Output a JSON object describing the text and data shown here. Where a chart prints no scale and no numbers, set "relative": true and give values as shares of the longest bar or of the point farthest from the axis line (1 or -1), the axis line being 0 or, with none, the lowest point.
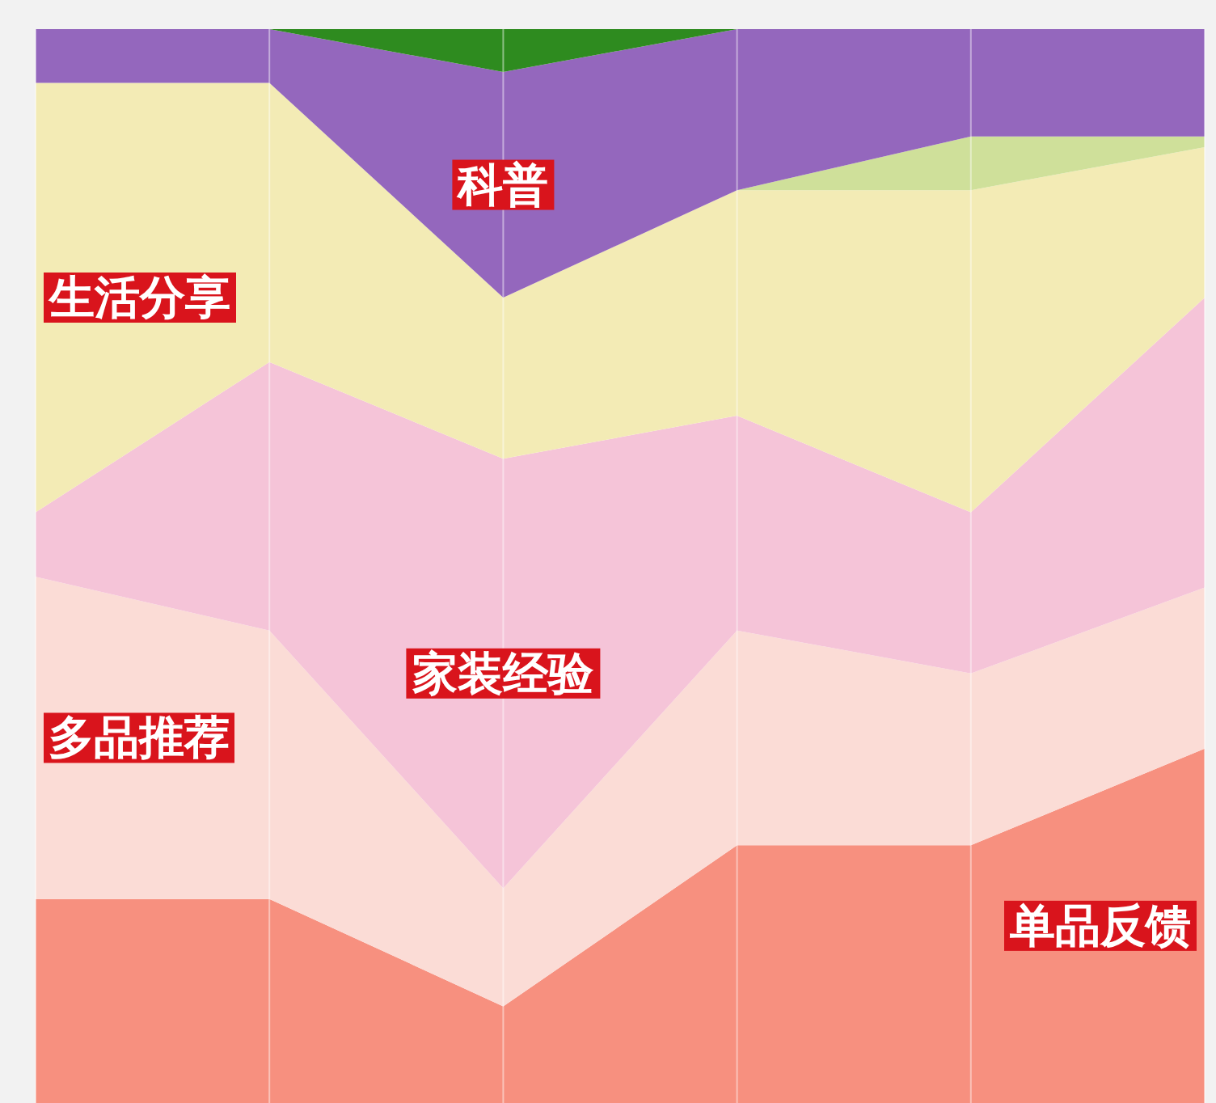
{
  "chart_data": {
    "type": "area",
    "stacked": true,
    "relative": true,
    "grid": "x",
    "categories": [
      null,
      null,
      null,
      null,
      null,
      null
    ],
    "series": [
      {
        "name": "单品反馈",
        "color": "#f7907f",
        "values": [
          0.19,
          0.19,
          0.09,
          0.24,
          0.24,
          0.33
        ]
      },
      {
        "name": "多品推荐",
        "color": "#fbdcd6",
        "values": [
          0.3,
          0.25,
          0.11,
          0.2,
          0.16,
          0.15
        ]
      },
      {
        "name": "家装经验",
        "color": "#f5c4d8",
        "values": [
          0.06,
          0.25,
          0.4,
          0.2,
          0.15,
          0.27
        ]
      },
      {
        "name": "生活分享",
        "color": "#f3ebb5",
        "values": [
          0.4,
          0.26,
          0.15,
          0.21,
          0.3,
          0.14
        ]
      },
      {
        "color": "#cfe09a",
        "values": [
          0,
          0,
          0,
          0,
          0.05,
          0.01
        ]
      },
      {
        "name": "科普",
        "color": "#9467bd",
        "values": [
          0.05,
          0.05,
          0.21,
          0.15,
          0.1,
          0.1
        ]
      },
      {
        "color": "#2e8b1f",
        "values": [
          0,
          0,
          0.04,
          0,
          0,
          0
        ]
      }
    ]
  }
}
